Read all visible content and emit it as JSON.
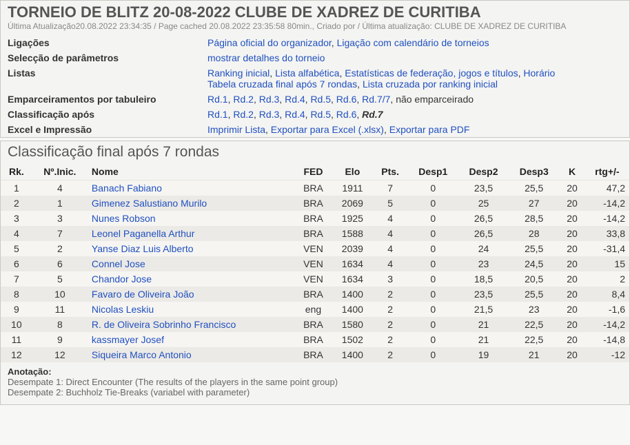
{
  "header": {
    "title": "TORNEIO DE BLITZ 20-08-2022 CLUBE DE XADREZ DE CURITIBA",
    "subtitle": "Última Atualização20.08.2022 23:34:35 / Page cached 20.08.2022 23:35:58 80min., Criado por / Última atualização: CLUBE DE XADREZ DE CURITIBA"
  },
  "info": {
    "rows": [
      {
        "label": "Ligações",
        "items": [
          {
            "text": "Página oficial do organizador",
            "link": true
          },
          {
            "text": "Ligação com calendário de torneios",
            "link": true
          }
        ]
      },
      {
        "label": "Selecção de parâmetros",
        "items": [
          {
            "text": "mostrar detalhes do torneio",
            "link": true
          }
        ]
      },
      {
        "label": "Listas",
        "items": [
          {
            "text": "Ranking inicial",
            "link": true
          },
          {
            "text": "Lista alfabética",
            "link": true
          },
          {
            "text": "Estatísticas de federação, jogos e títulos",
            "link": true
          },
          {
            "text": "Horário",
            "link": true
          }
        ],
        "items2": [
          {
            "text": "Tabela cruzada final após 7 rondas",
            "link": true
          },
          {
            "text": "Lista cruzada por ranking inicial",
            "link": true
          }
        ]
      },
      {
        "label": "Emparceiramentos por tabuleiro",
        "items": [
          {
            "text": "Rd.1",
            "link": true
          },
          {
            "text": "Rd.2",
            "link": true
          },
          {
            "text": "Rd.3",
            "link": true
          },
          {
            "text": "Rd.4",
            "link": true
          },
          {
            "text": "Rd.5",
            "link": true
          },
          {
            "text": "Rd.6",
            "link": true
          },
          {
            "text": "Rd.7/7",
            "link": true
          },
          {
            "text": "não emparceirado",
            "link": false
          }
        ]
      },
      {
        "label": "Classificação após",
        "items": [
          {
            "text": "Rd.1",
            "link": true
          },
          {
            "text": "Rd.2",
            "link": true
          },
          {
            "text": "Rd.3",
            "link": true
          },
          {
            "text": "Rd.4",
            "link": true
          },
          {
            "text": "Rd.5",
            "link": true
          },
          {
            "text": "Rd.6",
            "link": true
          },
          {
            "text": "Rd.7",
            "link": false,
            "bold": true
          }
        ]
      },
      {
        "label": "Excel e Impressão",
        "items": [
          {
            "text": "Imprimir Lista",
            "link": true
          },
          {
            "text": "Exportar para Excel (.xlsx)",
            "link": true
          },
          {
            "text": "Exportar para PDF",
            "link": true
          }
        ]
      }
    ]
  },
  "standings": {
    "title": "Classificação final após 7 rondas",
    "columns": [
      "Rk.",
      "Nº.Inic.",
      "Nome",
      "FED",
      "Elo",
      "Pts.",
      "Desp1",
      "Desp2",
      "Desp3",
      "K",
      "rtg+/-"
    ],
    "rows": [
      {
        "rk": 1,
        "ini": 4,
        "name": "Banach Fabiano",
        "fed": "BRA",
        "elo": 1911,
        "pts": "7",
        "d1": "0",
        "d2": "23,5",
        "d3": "25,5",
        "k": 20,
        "rtg": "47,2"
      },
      {
        "rk": 2,
        "ini": 1,
        "name": "Gimenez Salustiano Murilo",
        "fed": "BRA",
        "elo": 2069,
        "pts": "5",
        "d1": "0",
        "d2": "25",
        "d3": "27",
        "k": 20,
        "rtg": "-14,2"
      },
      {
        "rk": 3,
        "ini": 3,
        "name": "Nunes Robson",
        "fed": "BRA",
        "elo": 1925,
        "pts": "4",
        "d1": "0",
        "d2": "26,5",
        "d3": "28,5",
        "k": 20,
        "rtg": "-14,2"
      },
      {
        "rk": 4,
        "ini": 7,
        "name": "Leonel Paganella Arthur",
        "fed": "BRA",
        "elo": 1588,
        "pts": "4",
        "d1": "0",
        "d2": "26,5",
        "d3": "28",
        "k": 20,
        "rtg": "33,8"
      },
      {
        "rk": 5,
        "ini": 2,
        "name": "Yanse Diaz Luis Alberto",
        "fed": "VEN",
        "elo": 2039,
        "pts": "4",
        "d1": "0",
        "d2": "24",
        "d3": "25,5",
        "k": 20,
        "rtg": "-31,4"
      },
      {
        "rk": 6,
        "ini": 6,
        "name": "Connel Jose",
        "fed": "VEN",
        "elo": 1634,
        "pts": "4",
        "d1": "0",
        "d2": "23",
        "d3": "24,5",
        "k": 20,
        "rtg": "15"
      },
      {
        "rk": 7,
        "ini": 5,
        "name": "Chandor Jose",
        "fed": "VEN",
        "elo": 1634,
        "pts": "3",
        "d1": "0",
        "d2": "18,5",
        "d3": "20,5",
        "k": 20,
        "rtg": "2"
      },
      {
        "rk": 8,
        "ini": 10,
        "name": "Favaro de Oliveira João",
        "fed": "BRA",
        "elo": 1400,
        "pts": "2",
        "d1": "0",
        "d2": "23,5",
        "d3": "25,5",
        "k": 20,
        "rtg": "8,4"
      },
      {
        "rk": 9,
        "ini": 11,
        "name": "Nicolas Leskiu",
        "fed": "eng",
        "elo": 1400,
        "pts": "2",
        "d1": "0",
        "d2": "21,5",
        "d3": "23",
        "k": 20,
        "rtg": "-1,6"
      },
      {
        "rk": 10,
        "ini": 8,
        "name": "R. de Oliveira Sobrinho Francisco",
        "fed": "BRA",
        "elo": 1580,
        "pts": "2",
        "d1": "0",
        "d2": "21",
        "d3": "22,5",
        "k": 20,
        "rtg": "-14,2"
      },
      {
        "rk": 11,
        "ini": 9,
        "name": "kassmayer Josef",
        "fed": "BRA",
        "elo": 1502,
        "pts": "2",
        "d1": "0",
        "d2": "21",
        "d3": "22,5",
        "k": 20,
        "rtg": "-14,8"
      },
      {
        "rk": 12,
        "ini": 12,
        "name": "Siqueira Marco Antonio",
        "fed": "BRA",
        "elo": 1400,
        "pts": "2",
        "d1": "0",
        "d2": "19",
        "d3": "21",
        "k": 20,
        "rtg": "-12"
      }
    ]
  },
  "footnote": {
    "header": "Anotação:",
    "lines": [
      "Desempate 1: Direct Encounter (The results of the players in the same point group)",
      "Desempate 2: Buchholz Tie-Breaks (variabel with parameter)"
    ]
  }
}
